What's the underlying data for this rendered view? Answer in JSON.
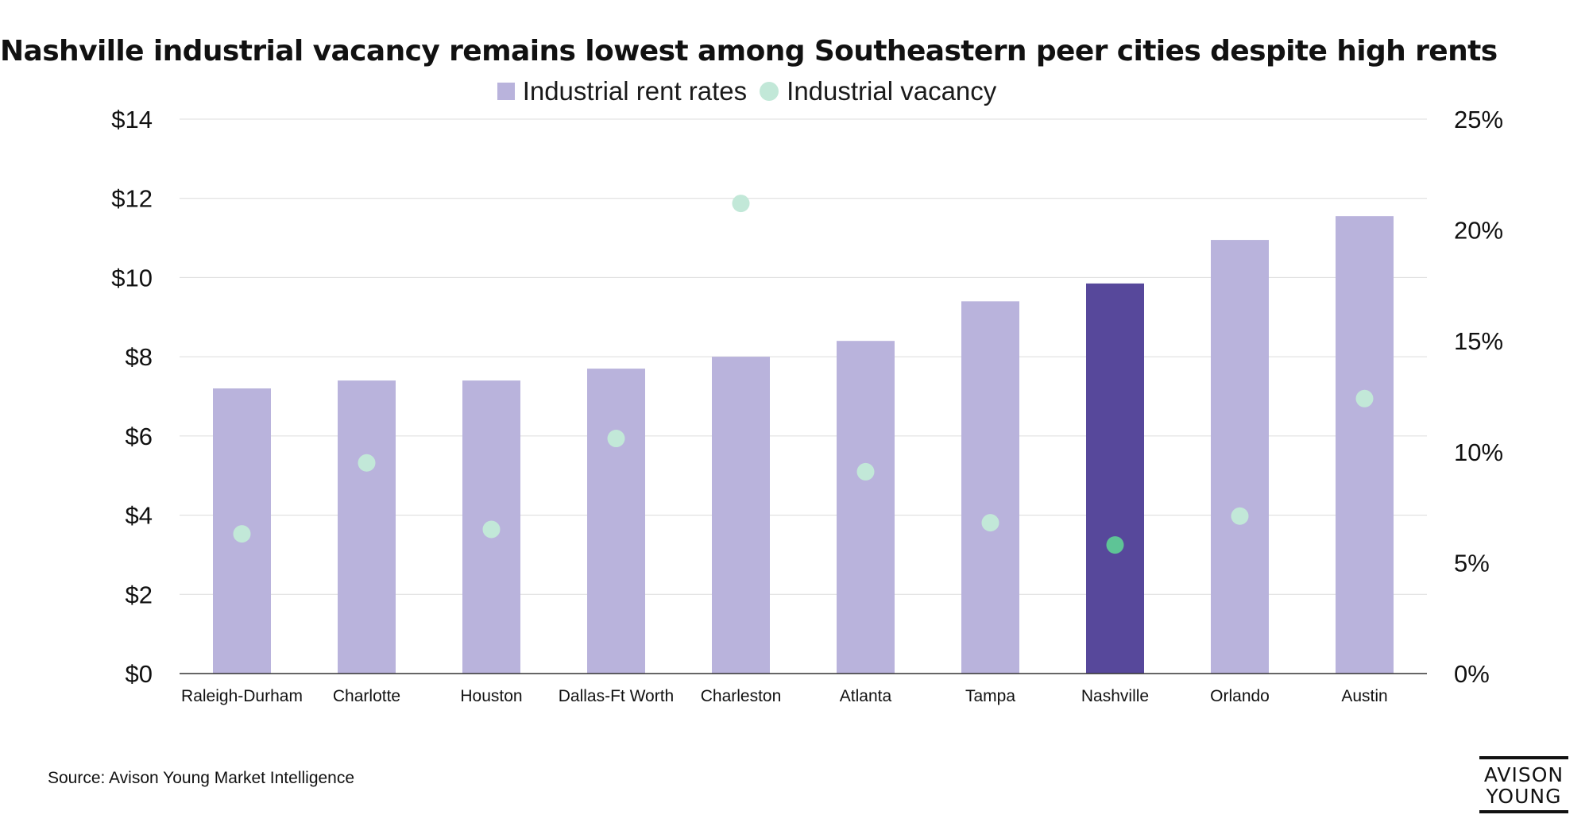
{
  "chart_data": {
    "type": "bar",
    "title": "Nashville industrial vacancy remains lowest among Southeastern peer cities despite high rents",
    "categories": [
      "Raleigh-Durham",
      "Charlotte",
      "Houston",
      "Dallas-Ft Worth",
      "Charleston",
      "Atlanta",
      "Tampa",
      "Nashville",
      "Orlando",
      "Austin"
    ],
    "highlight_category": "Nashville",
    "series": [
      {
        "name": "Industrial rent rates",
        "chart_kind": "bar",
        "axis": "left",
        "values": [
          7.2,
          7.4,
          7.4,
          7.7,
          8.0,
          8.4,
          9.4,
          9.85,
          10.95,
          11.55
        ]
      },
      {
        "name": "Industrial vacancy",
        "chart_kind": "scatter",
        "axis": "right",
        "values": [
          6.3,
          9.5,
          6.5,
          10.6,
          21.2,
          9.1,
          6.8,
          5.8,
          7.1,
          12.4
        ]
      }
    ],
    "y_left": {
      "range": [
        0,
        14
      ],
      "ticks": [
        0,
        2,
        4,
        6,
        8,
        10,
        12,
        14
      ],
      "tick_labels": [
        "$0",
        "$2",
        "$4",
        "$6",
        "$8",
        "$10",
        "$12",
        "$14"
      ]
    },
    "y_right": {
      "range": [
        0,
        25
      ],
      "ticks": [
        0,
        5,
        10,
        15,
        20,
        25
      ],
      "tick_labels": [
        "0%",
        "5%",
        "10%",
        "15%",
        "20%",
        "25%"
      ]
    },
    "xlabel": "",
    "ylabel": "",
    "grid": true,
    "legend_position": "top-center"
  },
  "legend": {
    "rent_label": "Industrial rent rates",
    "vacancy_label": "Industrial vacancy"
  },
  "source": "Source: Avison Young Market Intelligence",
  "logo": {
    "line1": "AVISON",
    "line2": "YOUNG"
  },
  "colors": {
    "bar": "#b9b3dc",
    "bar_highlight": "#57489b",
    "dot": "#c2e8d8",
    "dot_highlight": "#5ec496",
    "grid": "#dcdcdc",
    "axis": "#333333"
  }
}
